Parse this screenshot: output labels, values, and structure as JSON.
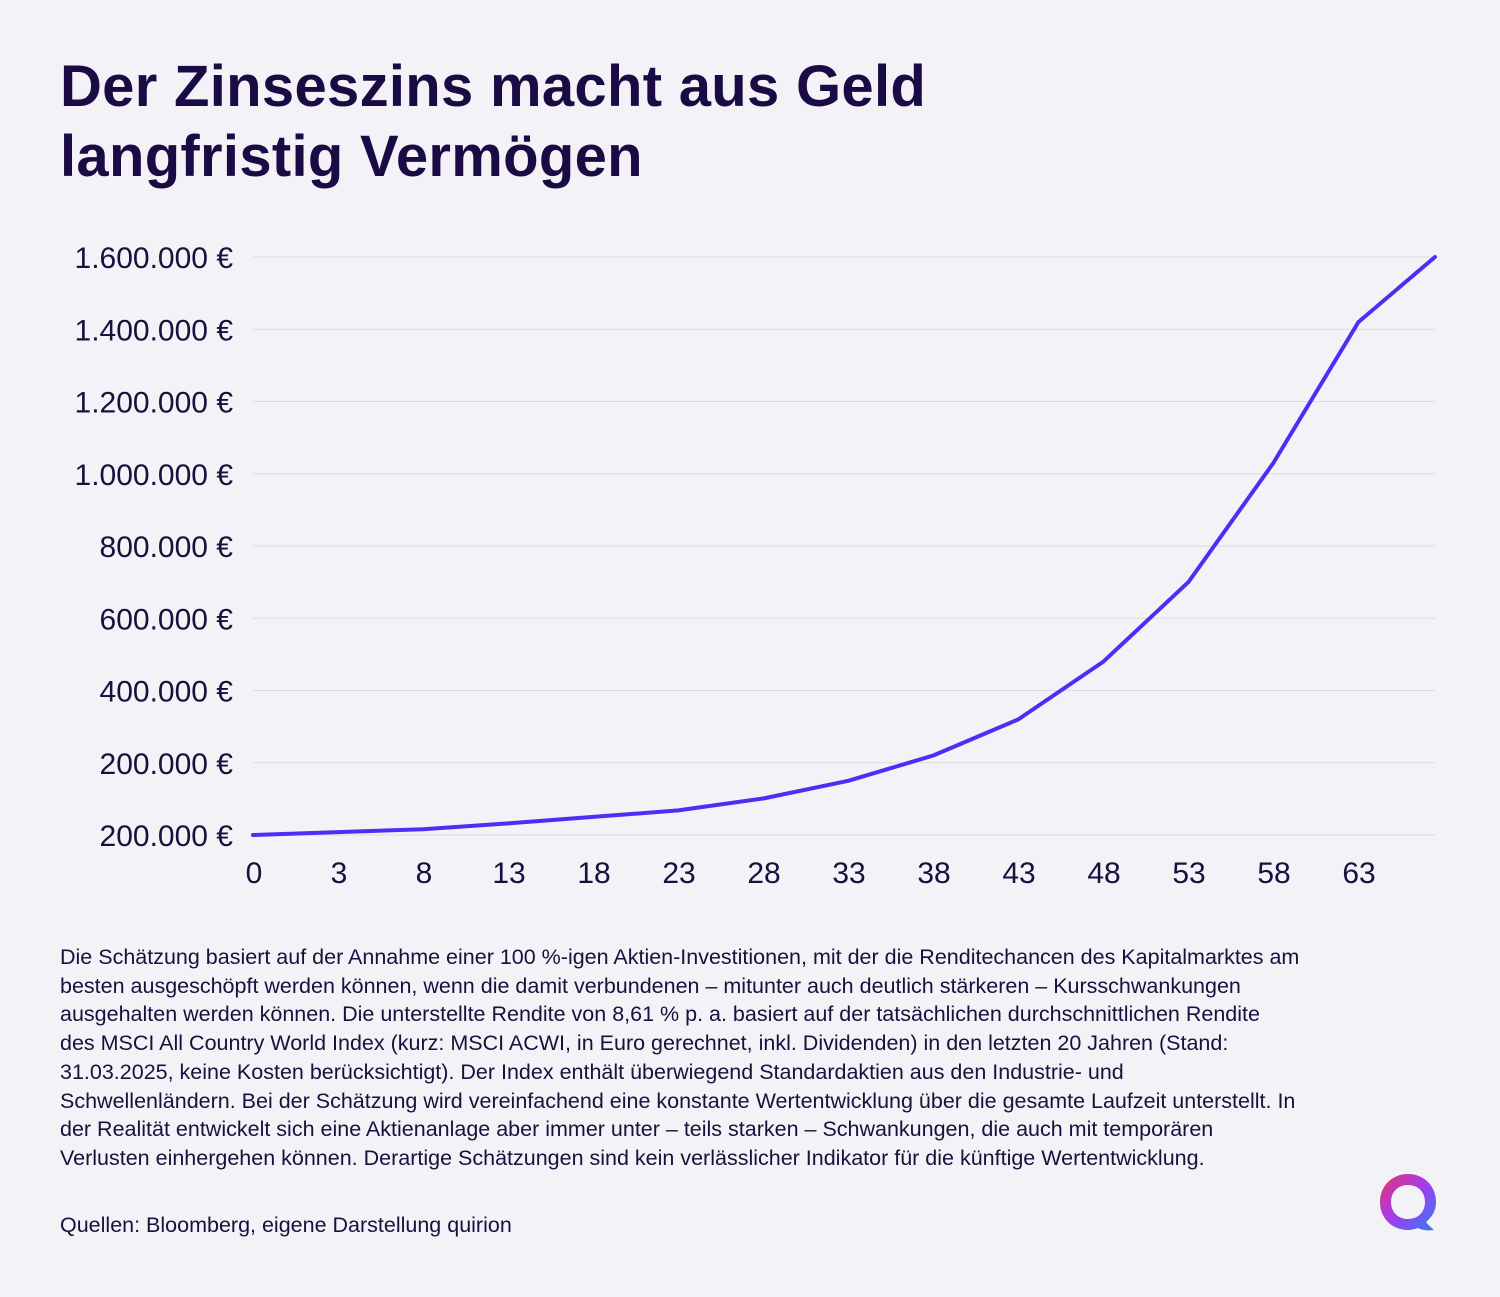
{
  "header": {
    "title_line1": "Der Zinseszins macht aus Geld",
    "title_line2": "langfristig Vermögen"
  },
  "chart_data": {
    "type": "line",
    "y_tick_labels": [
      "200.000 €",
      "200.000 €",
      "400.000 €",
      "600.000 €",
      "800.000 €",
      "1.000.000 €",
      "1.200.000 €",
      "1.400.000 €",
      "1.600.000 €"
    ],
    "x_tick_labels": [
      "0",
      "3",
      "8",
      "13",
      "18",
      "23",
      "28",
      "33",
      "38",
      "43",
      "48",
      "53",
      "58",
      "63"
    ],
    "grid": true,
    "legend": "none",
    "line_color": "#4a2ff5",
    "series": [
      {
        "x": [
          0,
          5,
          10,
          15,
          20,
          25,
          30,
          35,
          40,
          45,
          50,
          55,
          60,
          65,
          69.5
        ],
        "y": [
          0,
          8000,
          16000,
          32000,
          50000,
          68000,
          101000,
          150000,
          220000,
          320000,
          480000,
          700000,
          1030000,
          1420000,
          1600000
        ]
      }
    ]
  },
  "footnote": {
    "text": "Die Schätzung basiert auf der Annahme einer 100 %-igen Aktien-Investitionen, mit der die Renditechancen des Kapitalmarktes am besten ausgeschöpft werden können, wenn die damit verbundenen – mitunter auch deutlich stärkeren – Kursschwankungen ausgehalten werden können. Die unterstellte Rendite von 8,61 % p. a. basiert auf der tatsächlichen durchschnittlichen Rendite des MSCI All Country World Index (kurz: MSCI ACWI, in Euro gerechnet, inkl. Dividenden) in den letzten 20 Jahren (Stand: 31.03.2025, keine Kosten berücksichtigt). Der Index enthält überwiegend Standardaktien aus den Industrie- und Schwellenländern. Bei der Schätzung wird vereinfachend eine konstante Wertentwicklung über die gesamte Laufzeit unterstellt. In der Realität entwickelt sich eine Aktienanlage aber immer unter – teils starken – Schwankungen, die auch mit temporären Verlusten einhergehen können. Derartige Schätzungen sind kein verlässlicher Indikator für die künftige Wertentwicklung.",
    "source": "Quellen: Bloomberg, eigene Darstellung quirion"
  },
  "brand": {
    "logo_icon": "quirion-ring-logo-icon",
    "gradient_colors": [
      "#e8336a",
      "#a23df0",
      "#2f7df2"
    ]
  }
}
